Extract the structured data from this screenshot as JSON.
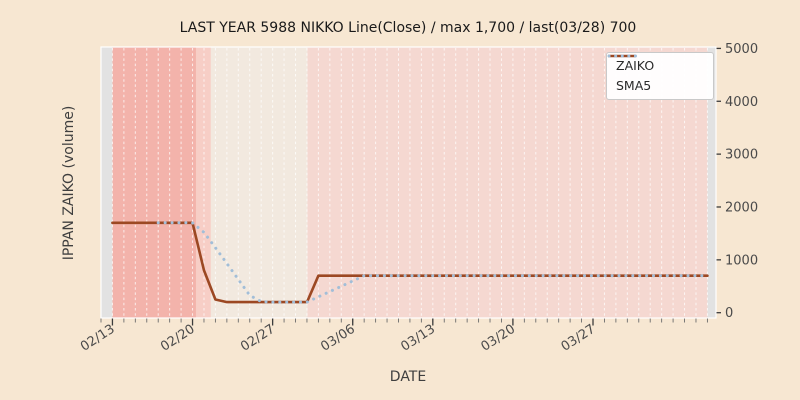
{
  "title": "LAST YEAR 5988 NIKKO Line(Close) / max 1,700 / last(03/28) 700",
  "chart_data": {
    "type": "line",
    "title": "LAST YEAR 5988 NIKKO Line(Close) / max 1,700 / last(03/28) 700",
    "xlabel": "DATE",
    "ylabel": "IPPAN ZAIKO (volume)",
    "ylim": [
      0,
      5000
    ],
    "yticks": [
      0,
      1000,
      2000,
      3000,
      4000,
      5000
    ],
    "xtick_labels": [
      "02/13",
      "02/20",
      "02/27",
      "03/06",
      "03/13",
      "03/20",
      "03/27"
    ],
    "xtick_days": [
      0,
      7,
      14,
      21,
      28,
      35,
      42
    ],
    "xlim_days": [
      -1,
      52.75
    ],
    "grid": "vertical daily white dashed gridlines",
    "legend_position": "upper right",
    "max_value": 1700,
    "last_label": "last(03/28)",
    "last_value": 700,
    "series": [
      {
        "name": "ZAIKO",
        "style": "solid",
        "color": "#9c4823",
        "start_day": 0,
        "values": [
          1700,
          1700,
          1700,
          1700,
          1700,
          1700,
          1700,
          1700,
          800,
          250,
          200,
          200,
          200,
          200,
          200,
          200,
          200,
          200,
          700,
          700,
          700,
          700,
          700,
          700,
          700,
          700,
          700,
          700,
          700,
          700,
          700,
          700,
          700,
          700,
          700,
          700,
          700,
          700,
          700,
          700,
          700,
          700,
          700,
          700,
          700,
          700,
          700,
          700,
          700,
          700,
          700,
          700,
          700
        ]
      },
      {
        "name": "SMA5",
        "style": "dotted",
        "color": "#a2bed8",
        "start_day": 4,
        "values": [
          1700,
          1700,
          1700,
          1700,
          1520,
          1230,
          930,
          630,
          330,
          210,
          200,
          200,
          200,
          200,
          300,
          400,
          500,
          600,
          700,
          700,
          700,
          700,
          700,
          700,
          700,
          700,
          700,
          700,
          700,
          700,
          700,
          700,
          700,
          700,
          700,
          700,
          700,
          700,
          700,
          700,
          700,
          700,
          700,
          700,
          700,
          700,
          700,
          700,
          700
        ]
      }
    ],
    "background_bands": [
      {
        "start_day": -1,
        "end_day": 0,
        "color": "#e2e2e2",
        "meaning": "no-data"
      },
      {
        "start_day": 0,
        "end_day": 7.3,
        "color": "#f3b3ab",
        "meaning": "high-level"
      },
      {
        "start_day": 7.3,
        "end_day": 8.6,
        "color": "#f7cec6",
        "meaning": "mid-level"
      },
      {
        "start_day": 8.6,
        "end_day": 17.05,
        "color": "#f2e9df",
        "meaning": "low-level"
      },
      {
        "start_day": 17.05,
        "end_day": 52,
        "color": "#f5d8d1",
        "meaning": "current-level"
      },
      {
        "start_day": 52,
        "end_day": 52.75,
        "color": "#e2e2e2",
        "meaning": "no-data"
      }
    ]
  },
  "legend": {
    "entries": [
      {
        "label": "ZAIKO"
      },
      {
        "label": "SMA5"
      }
    ]
  },
  "colors": {
    "figure_bg": "#f7e7d2",
    "gridline": "#ffffff",
    "zaiko_line": "#9c4823",
    "sma5_line": "#a2bed8",
    "tick_mark": "#3c3c3c",
    "tick_label": "#4a4a4a",
    "title_text": "#1a1a1a",
    "axis_text": "#3f3f3f",
    "legend_border": "#c9c9c9",
    "legend_bg": "#ffffff",
    "plot_border": "#ffffff"
  }
}
